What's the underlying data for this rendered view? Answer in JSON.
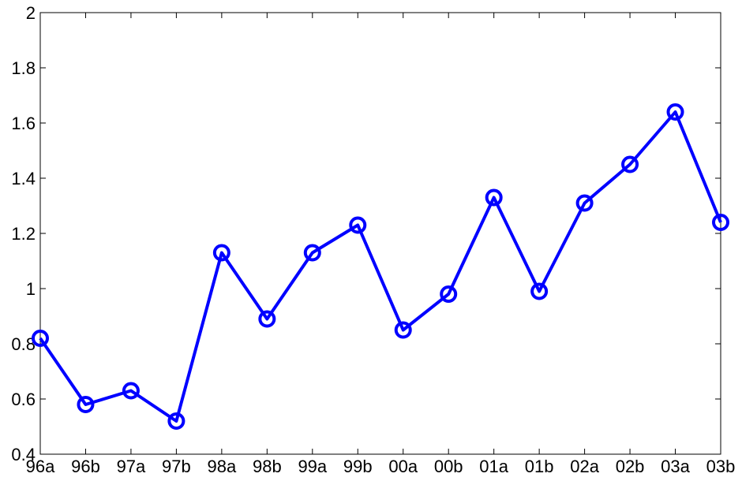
{
  "chart_data": {
    "type": "line",
    "title": "",
    "xlabel": "",
    "ylabel": "",
    "categories": [
      "96a",
      "96b",
      "97a",
      "97b",
      "98a",
      "98b",
      "99a",
      "99b",
      "00a",
      "00b",
      "01a",
      "01b",
      "02a",
      "02b",
      "03a",
      "03b"
    ],
    "series": [
      {
        "values": [
          0.82,
          0.58,
          0.63,
          0.52,
          1.13,
          0.89,
          1.13,
          1.23,
          0.85,
          0.98,
          1.33,
          0.99,
          1.31,
          1.45,
          1.64,
          1.24
        ],
        "color": "#0000ff",
        "marker": "circle"
      }
    ],
    "ylim": [
      0.4,
      2.0
    ],
    "yticks": [
      0.4,
      0.6,
      0.8,
      1,
      1.2,
      1.4,
      1.6,
      1.8,
      2
    ],
    "ytick_labels": [
      "0.4",
      "0.6",
      "0.8",
      "1",
      "1.2",
      "1.4",
      "1.6",
      "1.8",
      "2"
    ],
    "grid": false,
    "legend": "none"
  }
}
